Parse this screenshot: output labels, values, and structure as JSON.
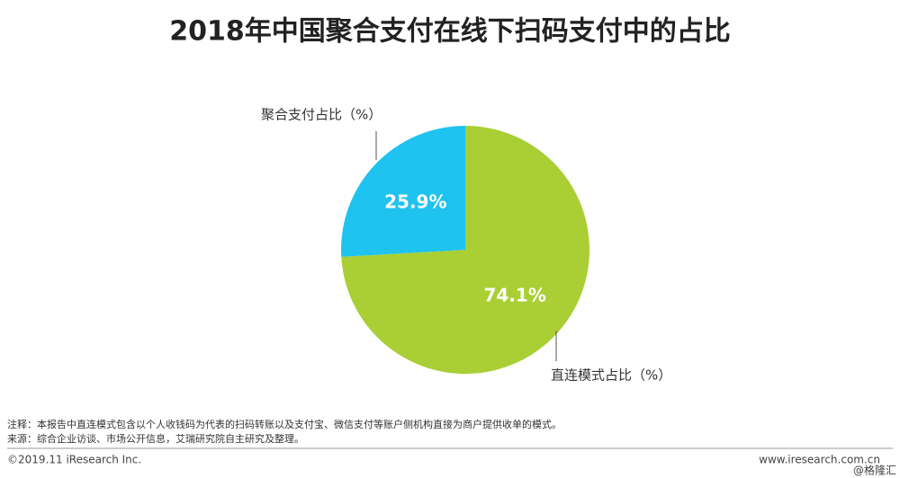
{
  "chart_data": {
    "type": "pie",
    "title": "2018年中国聚合支付在线下扫码支付中的占比",
    "categories": [
      "直连模式占比（%）",
      "聚合支付占比（%）"
    ],
    "values": [
      74.1,
      25.9
    ],
    "value_labels": [
      "74.1%",
      "25.9%"
    ],
    "colors": [
      "#a9cf34",
      "#1ec3ef"
    ],
    "notes": [
      "注释：本报告中直连模式包含以个人收钱码为代表的扫码转账以及支付宝、微信支付等账户侧机构直接为商户提供收单的模式。",
      "来源：综合企业访谈、市场公开信息，艾瑞研究院自主研究及整理。"
    ],
    "copyright": "©2019.11 iResearch Inc.",
    "website": "www.iresearch.com.cn",
    "watermark": "@格隆汇"
  }
}
